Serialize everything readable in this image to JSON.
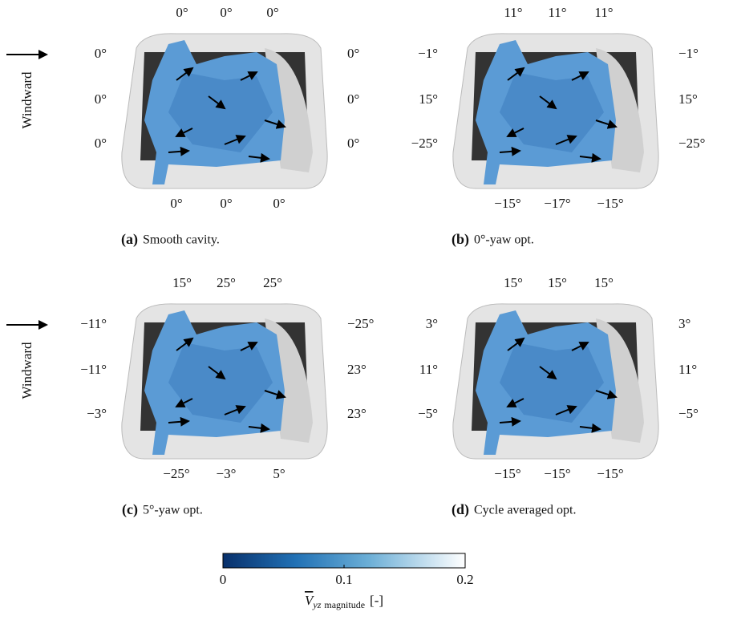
{
  "panels": [
    {
      "top": [
        "0°",
        "0°",
        "0°"
      ],
      "left": [
        "0°",
        "0°",
        "0°"
      ],
      "right": [
        "0°",
        "0°",
        "0°"
      ],
      "bottom": [
        "0°",
        "0°",
        "0°"
      ],
      "label": "(a)",
      "caption": "Smooth cavity.",
      "windward": "Windward"
    },
    {
      "top": [
        "11°",
        "11°",
        "11°"
      ],
      "left": [
        "−1°",
        "15°",
        "−25°"
      ],
      "right": [
        "−1°",
        "15°",
        "−25°"
      ],
      "bottom": [
        "−15°",
        "−17°",
        "−15°"
      ],
      "label": "(b)",
      "caption": "0°-yaw opt."
    },
    {
      "top": [
        "15°",
        "25°",
        "25°"
      ],
      "left": [
        "−11°",
        "−11°",
        "−3°"
      ],
      "right": [
        "−25°",
        "23°",
        "23°"
      ],
      "bottom": [
        "−25°",
        "−3°",
        "5°"
      ],
      "label": "(c)",
      "caption": "5°-yaw opt.",
      "windward": "Windward"
    },
    {
      "top": [
        "15°",
        "15°",
        "15°"
      ],
      "left": [
        "3°",
        "11°",
        "−5°"
      ],
      "right": [
        "3°",
        "11°",
        "−5°"
      ],
      "bottom": [
        "−15°",
        "−15°",
        "−15°"
      ],
      "label": "(d)",
      "caption": "Cycle averaged opt."
    }
  ],
  "colorbar": {
    "min": 0,
    "max": 0.2,
    "ticks": [
      0,
      0.1,
      0.2
    ],
    "symbol": "V",
    "subscript": "yz",
    "subscript_word": "magnitude",
    "unit": "[-]"
  }
}
